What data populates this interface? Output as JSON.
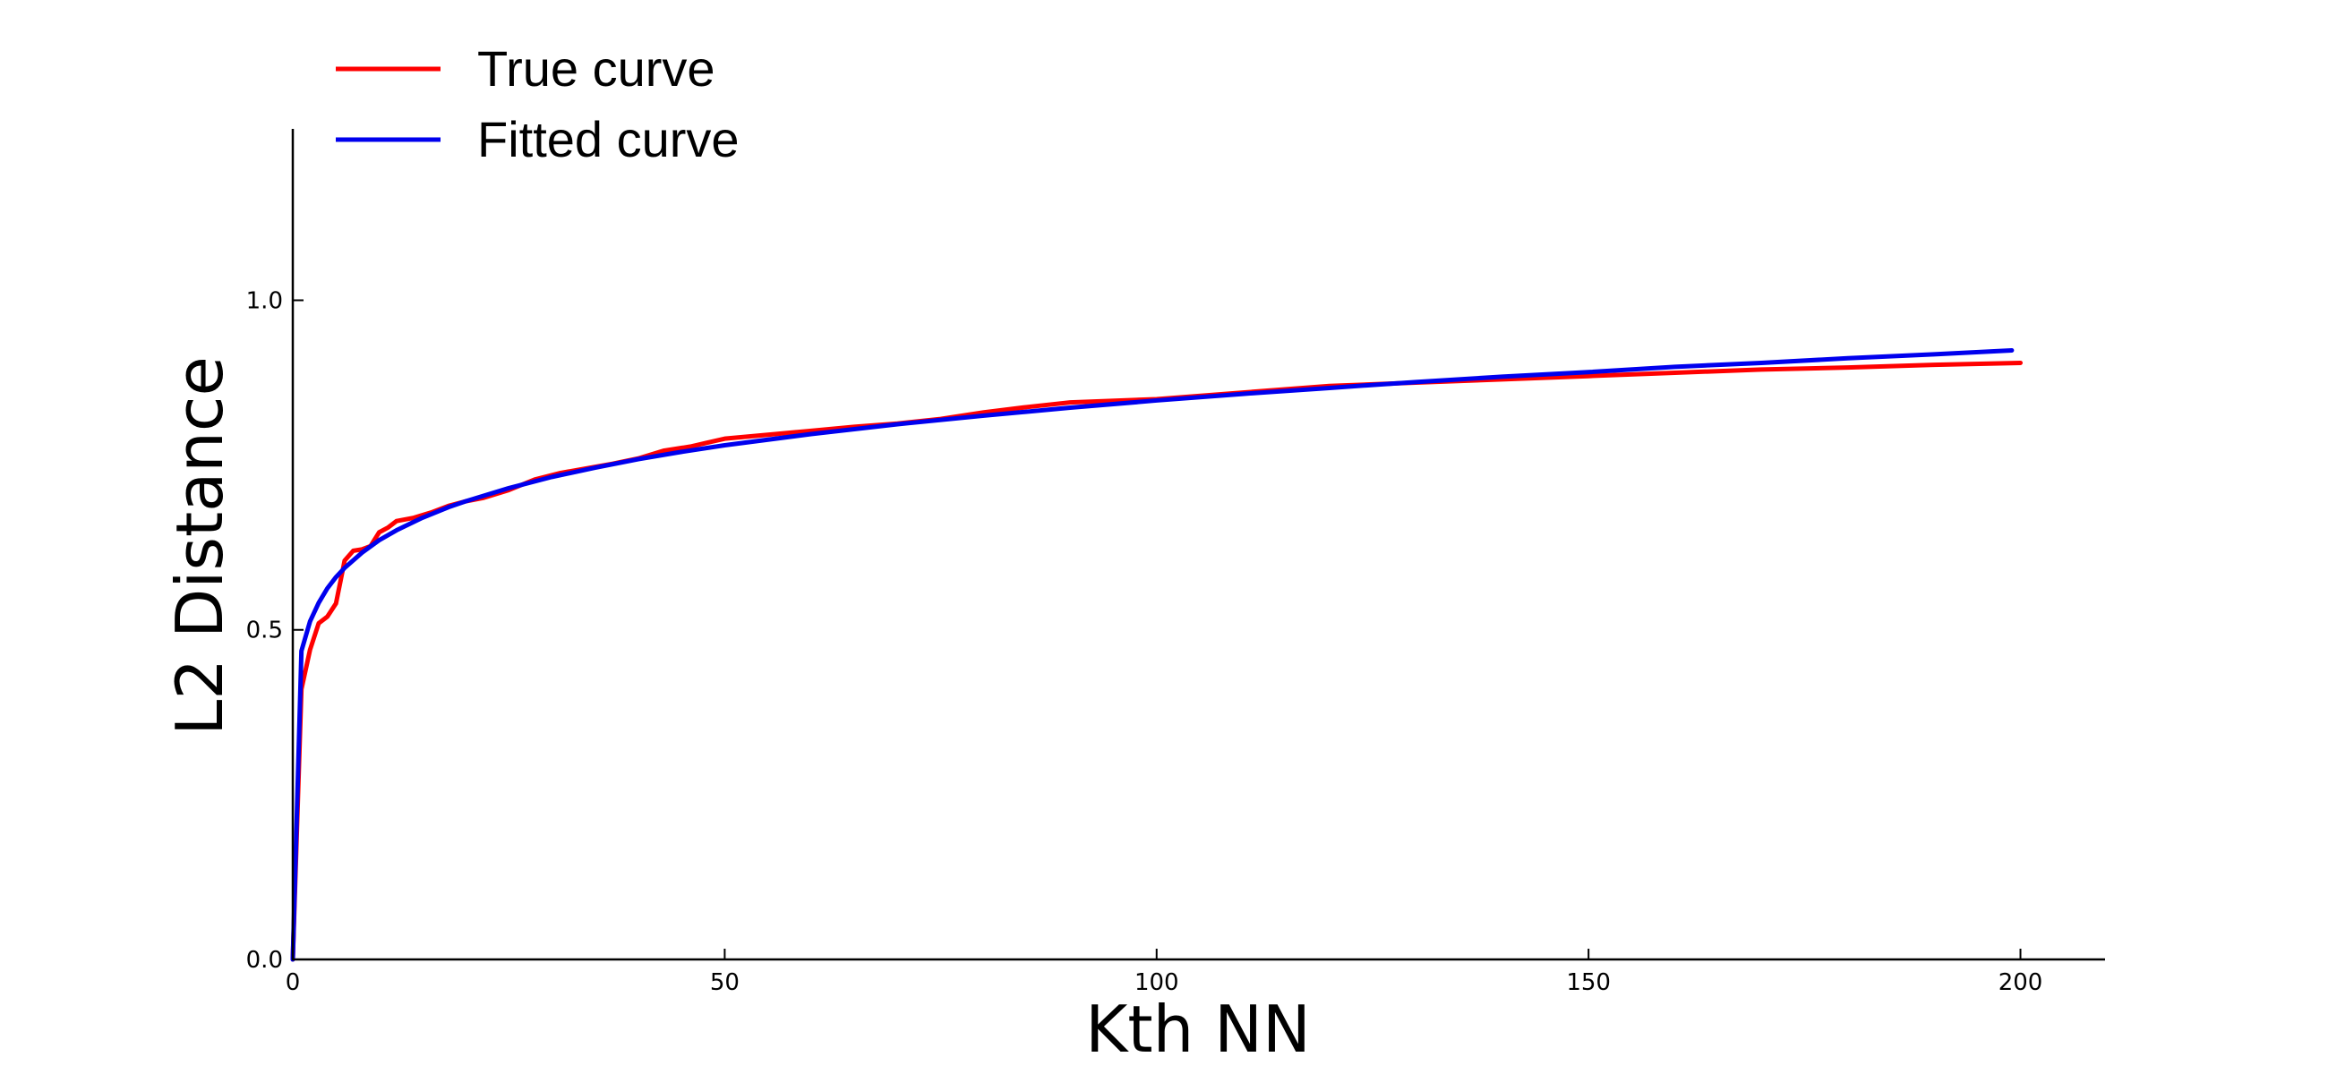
{
  "chart_data": {
    "type": "line",
    "xlabel": "Kth NN",
    "ylabel": "L2 Distance",
    "xlim": [
      0,
      210
    ],
    "ylim": [
      0,
      1.26
    ],
    "xticks": [
      0,
      50,
      100,
      150,
      200
    ],
    "yticks": [
      0.0,
      0.5,
      1.0
    ],
    "xtick_labels": [
      "0",
      "50",
      "100",
      "150",
      "200"
    ],
    "ytick_labels": [
      "0.0",
      "0.5",
      "1.0"
    ],
    "grid": false,
    "legend_position": "top-left",
    "series": [
      {
        "name": "True curve",
        "color": "#ff0000",
        "x": [
          0,
          1,
          2,
          3,
          4,
          5,
          6,
          7,
          8,
          9,
          10,
          11,
          12,
          14,
          16,
          18,
          20,
          22,
          25,
          28,
          31,
          34,
          37,
          40,
          43,
          46,
          48,
          50,
          55,
          60,
          65,
          70,
          75,
          80,
          85,
          90,
          100,
          110,
          120,
          130,
          140,
          150,
          160,
          170,
          180,
          190,
          200
        ],
        "y": [
          0.0,
          0.41,
          0.47,
          0.51,
          0.52,
          0.54,
          0.605,
          0.62,
          0.622,
          0.627,
          0.648,
          0.655,
          0.665,
          0.67,
          0.678,
          0.688,
          0.695,
          0.7,
          0.712,
          0.728,
          0.738,
          0.745,
          0.752,
          0.76,
          0.772,
          0.778,
          0.784,
          0.79,
          0.796,
          0.802,
          0.808,
          0.813,
          0.82,
          0.83,
          0.838,
          0.845,
          0.85,
          0.86,
          0.87,
          0.875,
          0.88,
          0.885,
          0.89,
          0.895,
          0.898,
          0.902,
          0.905
        ]
      },
      {
        "name": "Fitted curve",
        "color": "#0000ee",
        "x": [
          0,
          1,
          2,
          3,
          4,
          5,
          6,
          8,
          10,
          12,
          15,
          18,
          20,
          25,
          30,
          35,
          40,
          45,
          50,
          60,
          70,
          80,
          90,
          100,
          110,
          120,
          130,
          140,
          150,
          160,
          170,
          180,
          190,
          199
        ],
        "y": [
          0.0,
          0.468,
          0.513,
          0.541,
          0.563,
          0.58,
          0.594,
          0.617,
          0.636,
          0.651,
          0.67,
          0.686,
          0.695,
          0.715,
          0.732,
          0.746,
          0.759,
          0.77,
          0.78,
          0.797,
          0.812,
          0.825,
          0.837,
          0.848,
          0.858,
          0.867,
          0.876,
          0.884,
          0.891,
          0.899,
          0.905,
          0.912,
          0.918,
          0.924
        ]
      }
    ]
  }
}
